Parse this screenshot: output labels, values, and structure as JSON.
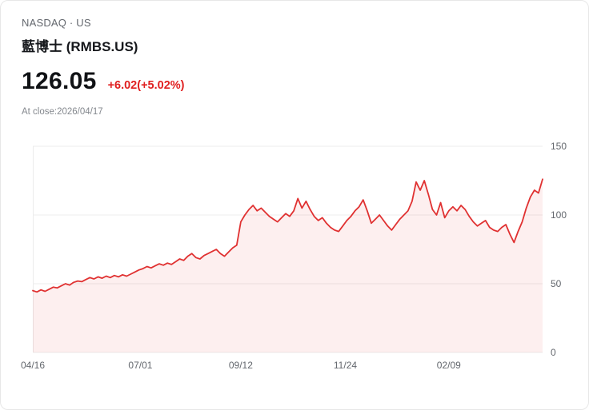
{
  "header": {
    "exchange_line": "NASDAQ · US",
    "title": "藍博士 (RMBS.US)"
  },
  "quote": {
    "price": "126.05",
    "change": "+6.02(+5.02%)",
    "as_of": "At close:2026/04/17"
  },
  "colors": {
    "accent_red": "#e02020",
    "text_primary": "#15171b",
    "text_secondary": "#63676d",
    "card_border": "#e7e7e7"
  },
  "chart_data": {
    "type": "area",
    "title": "",
    "xlabel": "",
    "ylabel": "",
    "ylim": [
      0,
      150
    ],
    "yticks": [
      0,
      50,
      100,
      150
    ],
    "grid": true,
    "legend_position": "none",
    "xticks": [
      {
        "label": "04/16",
        "pos": 0.0
      },
      {
        "label": "07/01",
        "pos": 0.211
      },
      {
        "label": "09/12",
        "pos": 0.408
      },
      {
        "label": "11/24",
        "pos": 0.613
      },
      {
        "label": "02/09",
        "pos": 0.816
      }
    ],
    "series_name": "RMBS.US price",
    "values": [
      45,
      44,
      45.5,
      44.5,
      46,
      47.5,
      47,
      48.5,
      50,
      49,
      51,
      52,
      51.5,
      53,
      54.5,
      53.5,
      55,
      54,
      55.5,
      54.5,
      56,
      55,
      56.5,
      55.5,
      57,
      58.5,
      60,
      61,
      62.5,
      61.5,
      63,
      64.5,
      63.5,
      65,
      64,
      66,
      68,
      67,
      70,
      72,
      69,
      68,
      70.5,
      72,
      73.5,
      75,
      72,
      70,
      73,
      76,
      78,
      95,
      100,
      104,
      107,
      103,
      105,
      102,
      99,
      97,
      95,
      98,
      101,
      99,
      103,
      112,
      105,
      110,
      104,
      99,
      96,
      98,
      94,
      91,
      89,
      88,
      92,
      96,
      99,
      103,
      106,
      111,
      103,
      94,
      97,
      100,
      96,
      92,
      89,
      93,
      97,
      100,
      103,
      110,
      124,
      118,
      125,
      115,
      104,
      100,
      109,
      98,
      103,
      106,
      103,
      107,
      104,
      99,
      95,
      92,
      94,
      96,
      91,
      89,
      88,
      91,
      93,
      86,
      80,
      88,
      95,
      105,
      113,
      118,
      116,
      126
    ],
    "colors": {
      "line": "#e03131",
      "fill": "rgba(224,49,49,0.08)",
      "grid": "#ececec",
      "axis_text": "#63676d"
    }
  }
}
